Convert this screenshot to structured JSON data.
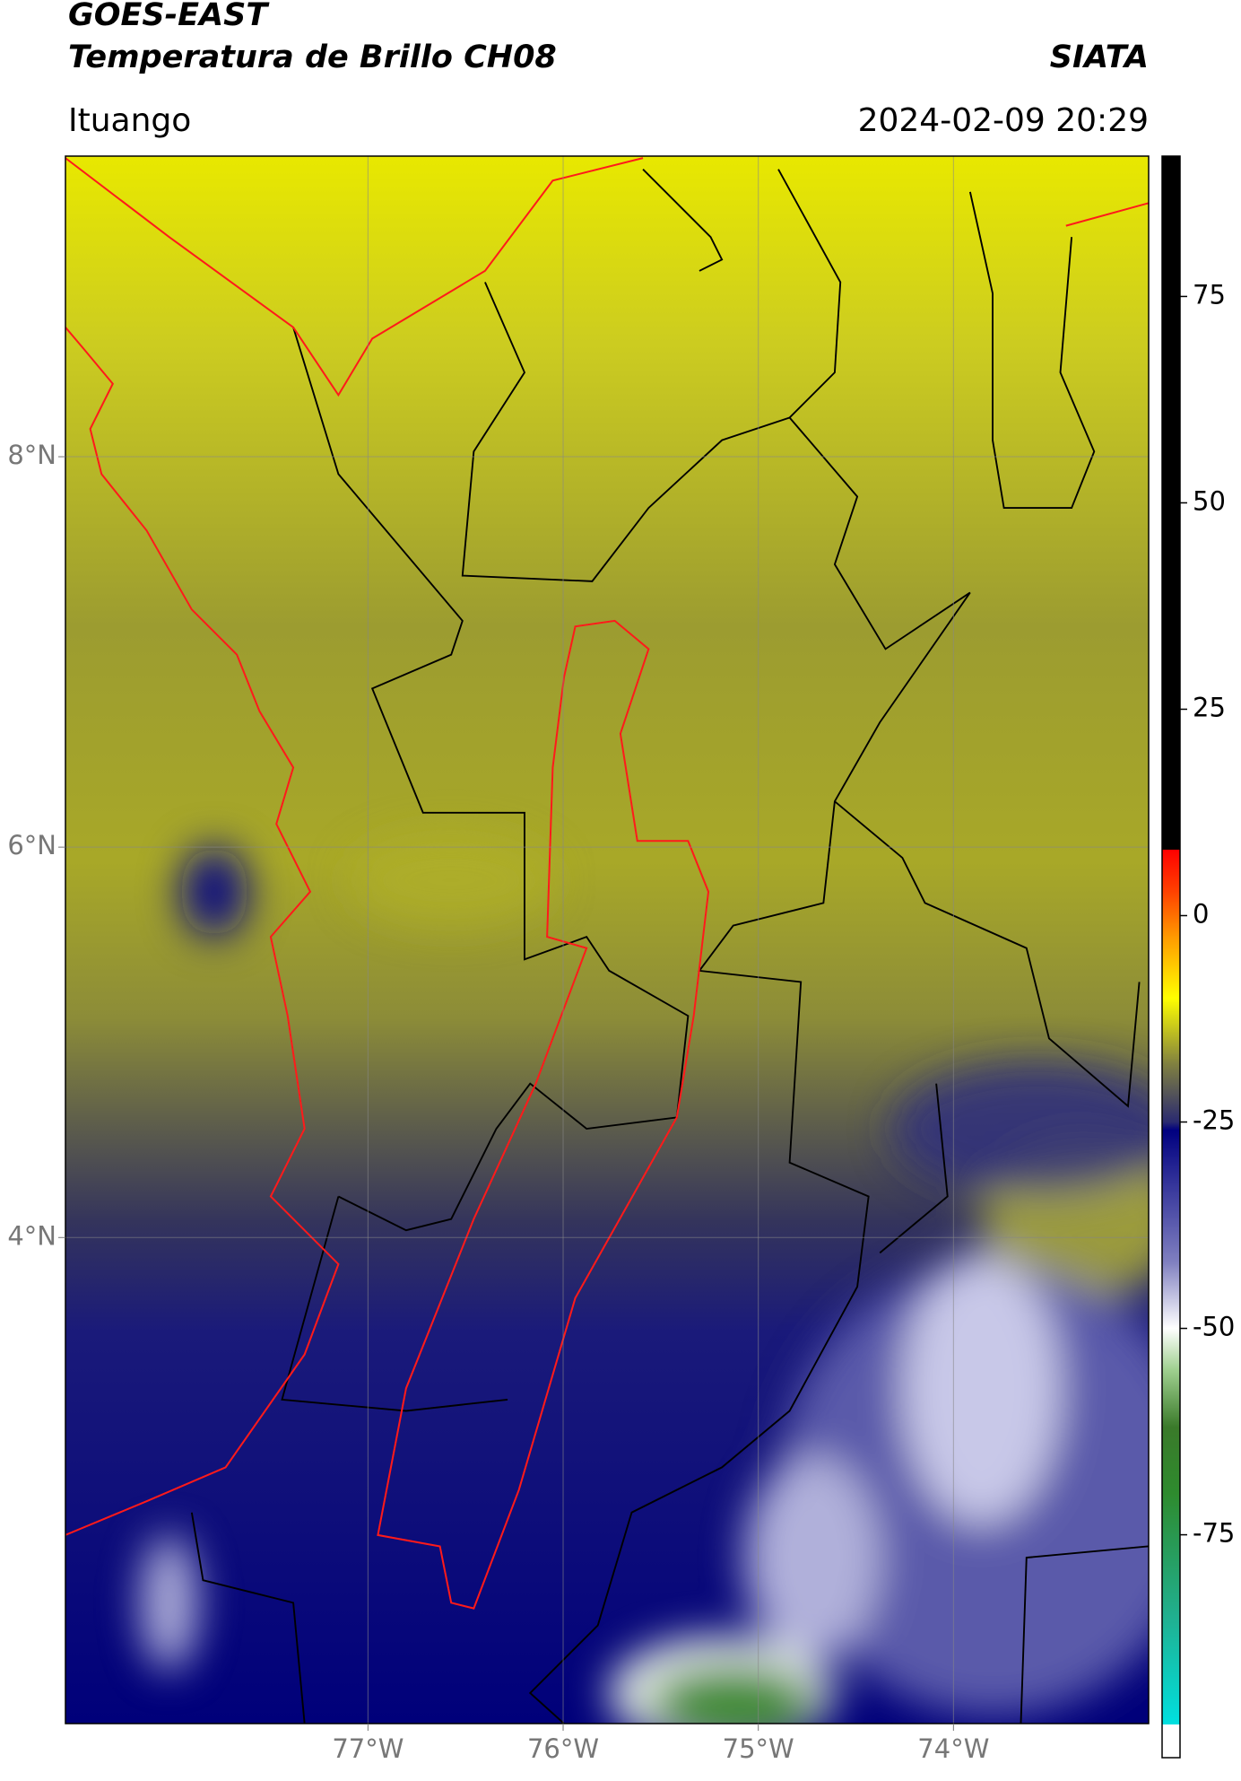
{
  "header": {
    "title": "GOES-EAST",
    "subtitle": "Temperatura de Brillo CH08",
    "brand": "SIATA",
    "location": "Ituango",
    "datetime": "2024-02-09 20:29"
  },
  "chart_data": {
    "type": "map",
    "xlim": [
      -78.55,
      -73.0
    ],
    "ylim": [
      1.51,
      9.54
    ],
    "xticks": [
      {
        "value": -77,
        "label": "77°W"
      },
      {
        "value": -76,
        "label": "76°W"
      },
      {
        "value": -75,
        "label": "75°W"
      },
      {
        "value": -74,
        "label": "74°W"
      }
    ],
    "yticks": [
      {
        "value": 4,
        "label": "4°N"
      },
      {
        "value": 6,
        "label": "6°N"
      },
      {
        "value": 8,
        "label": "8°N"
      }
    ],
    "grid": true,
    "colorbar_lim": [
      -102,
      92
    ],
    "colorbar_ticks": [
      -75,
      -50,
      -25,
      0,
      25,
      50,
      75
    ],
    "colormap": [
      [
        -102,
        "#ffffff"
      ],
      [
        -98,
        "#ffffff"
      ],
      [
        -98,
        "#00e0e0"
      ],
      [
        -85,
        "#20b090"
      ],
      [
        -70,
        "#2e8b2e"
      ],
      [
        -62,
        "#3a7a2a"
      ],
      [
        -55,
        "#a0d090"
      ],
      [
        -50,
        "#ffffff"
      ],
      [
        -42,
        "#8080c0"
      ],
      [
        -30,
        "#202090"
      ],
      [
        -26,
        "#000080"
      ],
      [
        -25,
        "#2a2a70"
      ],
      [
        -18,
        "#808040"
      ],
      [
        -14,
        "#c0c020"
      ],
      [
        -10,
        "#ffff00"
      ],
      [
        -3,
        "#ffa000"
      ],
      [
        3,
        "#ff4000"
      ],
      [
        8,
        "#ff0000"
      ],
      [
        8,
        "#000000"
      ],
      [
        92,
        "#000000"
      ]
    ]
  }
}
